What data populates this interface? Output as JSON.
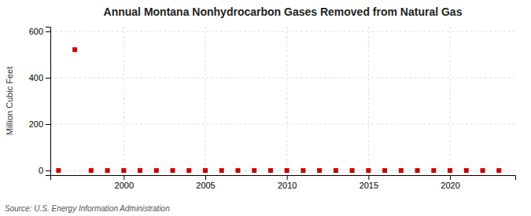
{
  "chart_data": {
    "type": "scatter",
    "title": "Annual Montana Nonhydrocarbon Gases Removed from Natural Gas",
    "ylabel": "Million Cubic Feet",
    "annotations": [
      "Source: U.S. Energy Information Administration"
    ],
    "x": [
      1996,
      1997,
      1998,
      1999,
      2000,
      2001,
      2002,
      2003,
      2004,
      2005,
      2006,
      2007,
      2008,
      2009,
      2010,
      2011,
      2012,
      2013,
      2014,
      2015,
      2016,
      2017,
      2018,
      2019,
      2020,
      2021,
      2022,
      2023
    ],
    "values": [
      0,
      521,
      0,
      0,
      0,
      0,
      0,
      0,
      0,
      0,
      0,
      0,
      0,
      0,
      0,
      0,
      0,
      0,
      0,
      0,
      0,
      0,
      0,
      0,
      0,
      0,
      0,
      0
    ],
    "color": "#cc0000",
    "marker": "square",
    "xlim": [
      1995.5,
      2024
    ],
    "ylim": [
      -20,
      620
    ],
    "xticks": [
      2000,
      2005,
      2010,
      2015,
      2020
    ],
    "yticks": [
      0,
      200,
      400,
      600
    ],
    "grid": true
  }
}
